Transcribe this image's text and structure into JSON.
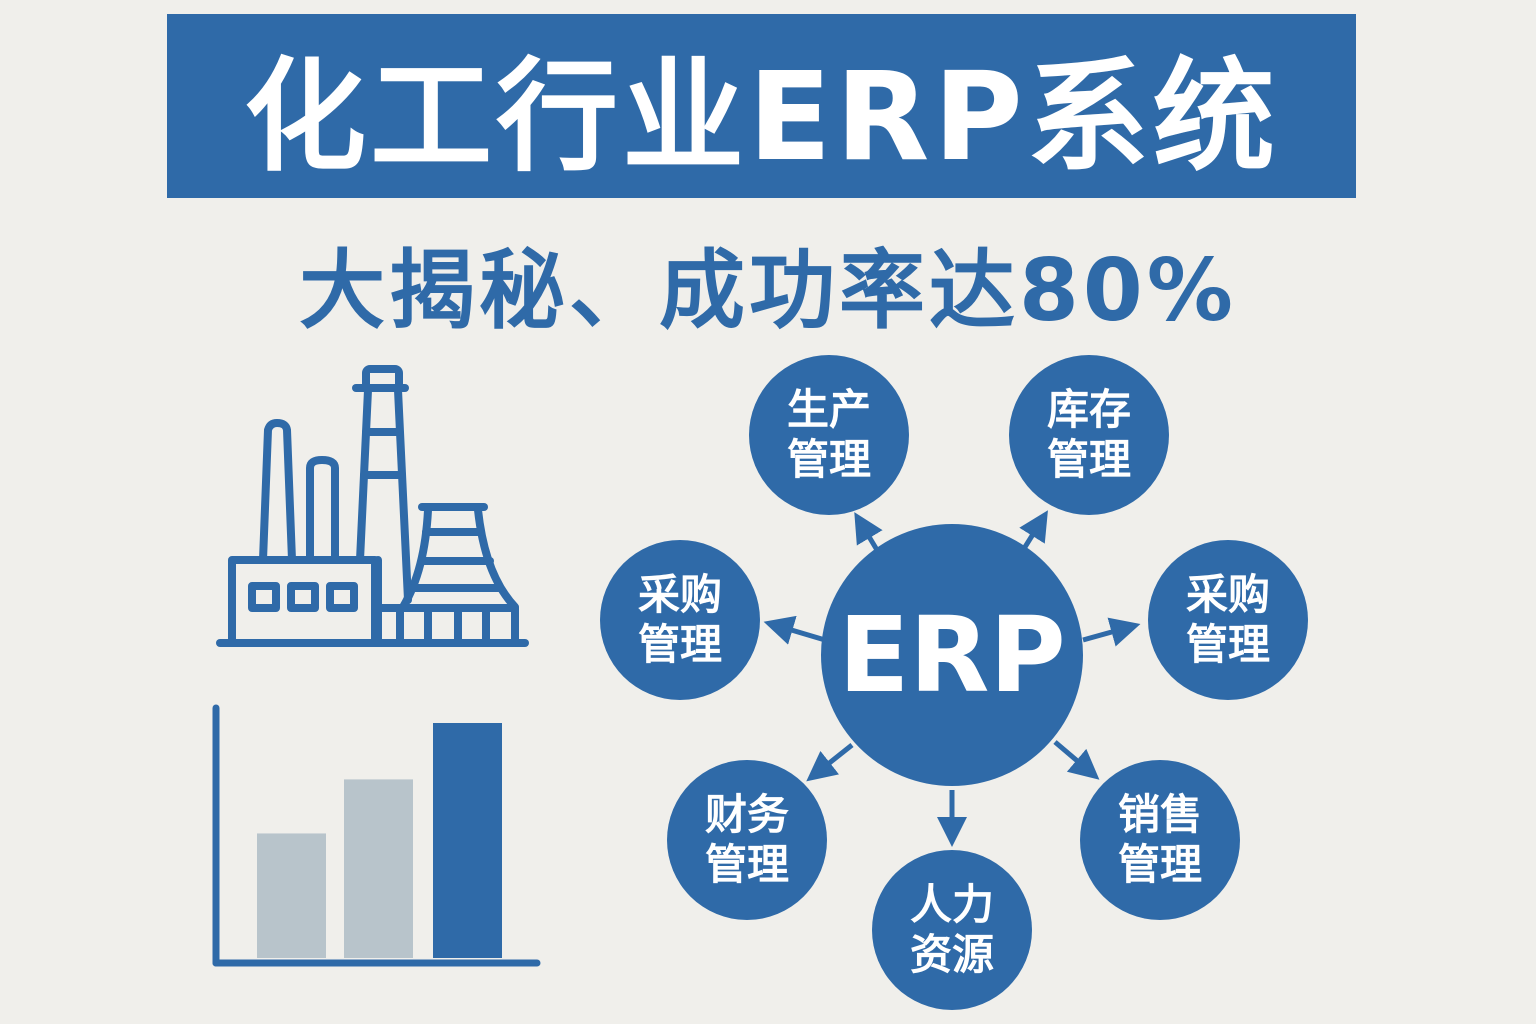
{
  "header": {
    "title": "化工行业ERP系统",
    "subtitle": "大揭秘、成功率达80%"
  },
  "colors": {
    "primary": "#2f6aa8",
    "background": "#f0efeb",
    "bar_gray": "#b8c4cb"
  },
  "icons": {
    "factory": "factory-icon",
    "chart": "bar-chart-icon"
  },
  "bar_chart": {
    "bars": [
      {
        "value": 53,
        "color": "gray"
      },
      {
        "value": 76,
        "color": "gray"
      },
      {
        "value": 100,
        "color": "blue"
      }
    ]
  },
  "diagram": {
    "center": "ERP",
    "modules": [
      {
        "line1": "生产",
        "line2": "管理"
      },
      {
        "line1": "库存",
        "line2": "管理"
      },
      {
        "line1": "采购",
        "line2": "管理"
      },
      {
        "line1": "采购",
        "line2": "管理"
      },
      {
        "line1": "财务",
        "line2": "管理"
      },
      {
        "line1": "人力",
        "line2": "资源"
      },
      {
        "line1": "销售",
        "line2": "管理"
      }
    ]
  }
}
